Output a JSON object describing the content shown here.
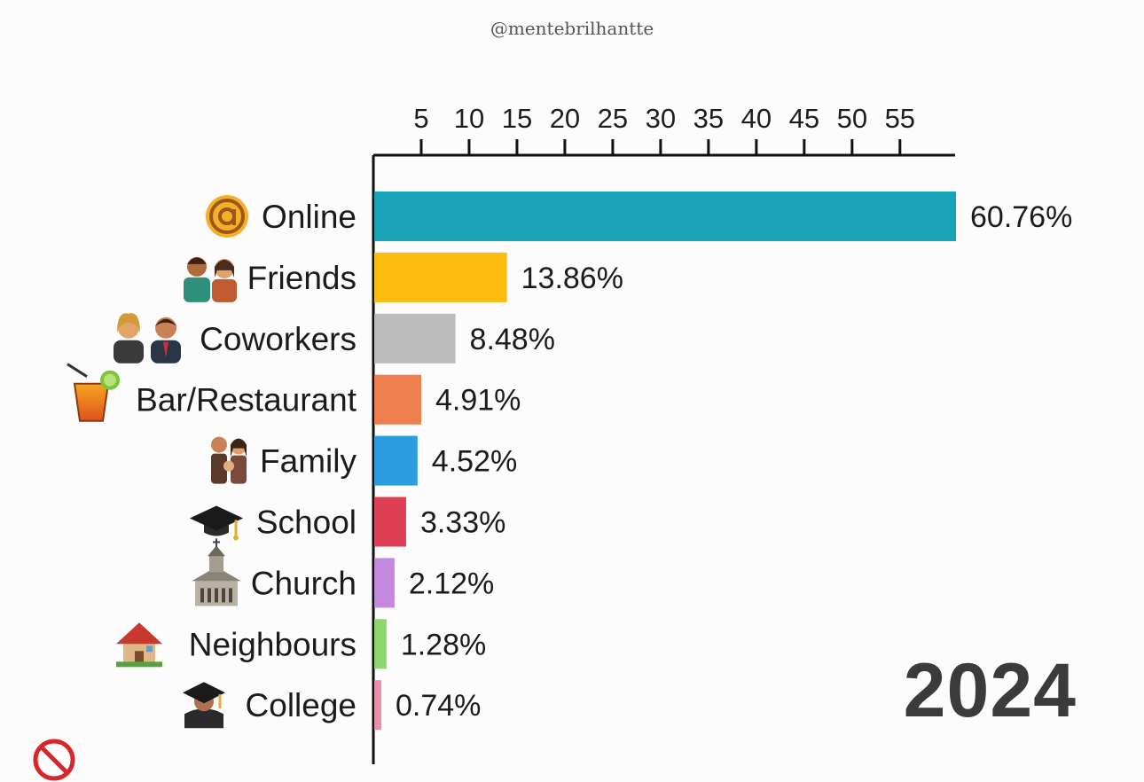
{
  "watermark": "@mentebrilhantte",
  "year": "2024",
  "chart_data": {
    "type": "bar",
    "orientation": "horizontal",
    "categories": [
      "Online",
      "Friends",
      "Coworkers",
      "Bar/Restaurant",
      "Family",
      "School",
      "Church",
      "Neighbours",
      "College"
    ],
    "values": [
      60.76,
      13.86,
      8.48,
      4.91,
      4.52,
      3.33,
      2.12,
      1.28,
      0.74
    ],
    "value_labels": [
      "60.76%",
      "13.86%",
      "8.48%",
      "4.91%",
      "4.52%",
      "3.33%",
      "2.12%",
      "1.28%",
      "0.74%"
    ],
    "icons": [
      "at-sign-icon",
      "friends-icon",
      "coworkers-icon",
      "cocktail-icon",
      "family-icon",
      "graduation-cap-icon",
      "church-icon",
      "house-icon",
      "graduate-icon"
    ],
    "colors": [
      "#1aa3b8",
      "#fcbd10",
      "#bcbcbc",
      "#f07f50",
      "#2b9ddf",
      "#e04055",
      "#c387dd",
      "#8ed46f",
      "#e98fa8"
    ],
    "xticks": [
      5,
      10,
      15,
      20,
      25,
      30,
      35,
      40,
      45,
      50,
      55
    ],
    "xlim": [
      0,
      60.76
    ],
    "axis_position": "top",
    "title": "",
    "xlabel": "",
    "ylabel": ""
  },
  "corner_icon": "prohibited-icon"
}
